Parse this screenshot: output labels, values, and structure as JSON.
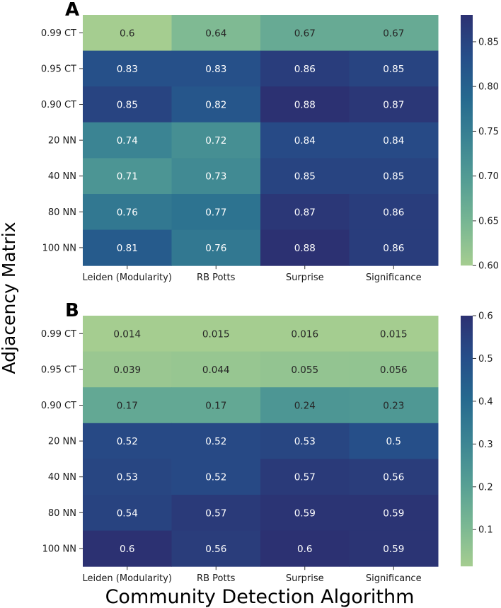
{
  "chart_data": [
    {
      "type": "heatmap",
      "panel": "A",
      "rows": [
        "0.99 CT",
        "0.95 CT",
        "0.90 CT",
        "20 NN",
        "40 NN",
        "80 NN",
        "100 NN"
      ],
      "columns": [
        "Leiden (Modularity)",
        "RB Potts",
        "Surprise",
        "Significance"
      ],
      "values": [
        [
          0.6,
          0.64,
          0.67,
          0.67
        ],
        [
          0.83,
          0.83,
          0.86,
          0.85
        ],
        [
          0.85,
          0.82,
          0.88,
          0.87
        ],
        [
          0.74,
          0.72,
          0.84,
          0.84
        ],
        [
          0.71,
          0.73,
          0.85,
          0.85
        ],
        [
          0.76,
          0.77,
          0.87,
          0.86
        ],
        [
          0.81,
          0.76,
          0.88,
          0.86
        ]
      ],
      "value_labels": [
        [
          "0.6",
          "0.64",
          "0.67",
          "0.67"
        ],
        [
          "0.83",
          "0.83",
          "0.86",
          "0.85"
        ],
        [
          "0.85",
          "0.82",
          "0.88",
          "0.87"
        ],
        [
          "0.74",
          "0.72",
          "0.84",
          "0.84"
        ],
        [
          "0.71",
          "0.73",
          "0.85",
          "0.85"
        ],
        [
          "0.76",
          "0.77",
          "0.87",
          "0.86"
        ],
        [
          "0.81",
          "0.76",
          "0.88",
          "0.86"
        ]
      ],
      "colorbar": {
        "vmin": 0.6,
        "vmax": 0.88,
        "ticks": [
          0.6,
          0.65,
          0.7,
          0.75,
          0.8,
          0.85
        ],
        "tick_labels": [
          "0.60",
          "0.65",
          "0.70",
          "0.75",
          "0.80",
          "0.85"
        ]
      },
      "colormap": "crest"
    },
    {
      "type": "heatmap",
      "panel": "B",
      "rows": [
        "0.99 CT",
        "0.95 CT",
        "0.90 CT",
        "20 NN",
        "40 NN",
        "80 NN",
        "100 NN"
      ],
      "columns": [
        "Leiden (Modularity)",
        "RB Potts",
        "Surprise",
        "Significance"
      ],
      "values": [
        [
          0.014,
          0.015,
          0.016,
          0.015
        ],
        [
          0.039,
          0.044,
          0.055,
          0.056
        ],
        [
          0.17,
          0.17,
          0.24,
          0.23
        ],
        [
          0.52,
          0.52,
          0.53,
          0.5
        ],
        [
          0.53,
          0.52,
          0.57,
          0.56
        ],
        [
          0.54,
          0.57,
          0.59,
          0.59
        ],
        [
          0.6,
          0.56,
          0.6,
          0.59
        ]
      ],
      "value_labels": [
        [
          "0.014",
          "0.015",
          "0.016",
          "0.015"
        ],
        [
          "0.039",
          "0.044",
          "0.055",
          "0.056"
        ],
        [
          "0.17",
          "0.17",
          "0.24",
          "0.23"
        ],
        [
          "0.52",
          "0.52",
          "0.53",
          "0.5"
        ],
        [
          "0.53",
          "0.52",
          "0.57",
          "0.56"
        ],
        [
          "0.54",
          "0.57",
          "0.59",
          "0.59"
        ],
        [
          "0.6",
          "0.56",
          "0.6",
          "0.59"
        ]
      ],
      "colorbar": {
        "vmin": 0.014,
        "vmax": 0.6,
        "ticks": [
          0.1,
          0.2,
          0.3,
          0.4,
          0.5,
          0.6
        ],
        "tick_labels": [
          "0.1",
          "0.2",
          "0.3",
          "0.4",
          "0.5",
          "0.6"
        ]
      },
      "colormap": "crest"
    }
  ],
  "shared_labels": {
    "ylabel": "Adjacency Matrix",
    "xlabel": "Community Detection Algorithm"
  },
  "colors": {
    "crest_stops": [
      "#a5cd90",
      "#79b793",
      "#559e94",
      "#3b8493",
      "#26698f",
      "#264e89",
      "#2c3172"
    ],
    "text_light": "#ffffff",
    "text_dark": "#262626"
  }
}
